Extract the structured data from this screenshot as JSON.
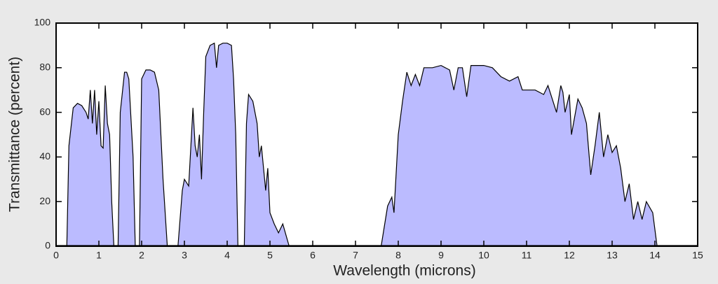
{
  "chart_data": {
    "type": "area",
    "xlabel": "Wavelength (microns)",
    "ylabel": "Transmittance (percent)",
    "color": "#bbbbff",
    "line_color": "#000000",
    "xlim": [
      0,
      15
    ],
    "ylim": [
      0,
      100
    ],
    "xticks": [
      0,
      1,
      2,
      3,
      4,
      5,
      6,
      7,
      8,
      9,
      10,
      11,
      12,
      13,
      14,
      15
    ],
    "yticks": [
      0,
      20,
      40,
      60,
      80,
      100
    ],
    "x": [
      0.25,
      0.3,
      0.4,
      0.5,
      0.6,
      0.7,
      0.75,
      0.8,
      0.85,
      0.9,
      0.95,
      1.0,
      1.05,
      1.1,
      1.15,
      1.2,
      1.25,
      1.3,
      1.35,
      1.45,
      1.5,
      1.6,
      1.65,
      1.7,
      1.8,
      1.85,
      1.95,
      2.0,
      2.1,
      2.2,
      2.3,
      2.4,
      2.5,
      2.6,
      2.85,
      2.95,
      3.0,
      3.1,
      3.2,
      3.25,
      3.3,
      3.35,
      3.4,
      3.45,
      3.5,
      3.6,
      3.7,
      3.75,
      3.8,
      3.9,
      4.0,
      4.1,
      4.15,
      4.2,
      4.25,
      4.4,
      4.45,
      4.5,
      4.6,
      4.7,
      4.75,
      4.8,
      4.9,
      4.95,
      5.0,
      5.1,
      5.2,
      5.3,
      5.45,
      7.6,
      7.75,
      7.85,
      7.9,
      8.0,
      8.1,
      8.2,
      8.3,
      8.4,
      8.5,
      8.6,
      8.8,
      9.0,
      9.2,
      9.3,
      9.4,
      9.5,
      9.6,
      9.7,
      10.0,
      10.2,
      10.4,
      10.6,
      10.8,
      10.9,
      11.2,
      11.4,
      11.5,
      11.7,
      11.8,
      11.85,
      11.9,
      12.0,
      12.05,
      12.2,
      12.3,
      12.4,
      12.5,
      12.6,
      12.7,
      12.8,
      12.9,
      13.0,
      13.1,
      13.2,
      13.3,
      13.4,
      13.5,
      13.6,
      13.7,
      13.8,
      13.95,
      14.05
    ],
    "values": [
      0,
      45,
      62,
      64,
      63,
      60,
      57,
      70,
      55,
      70,
      50,
      65,
      45,
      44,
      72,
      55,
      50,
      20,
      0,
      0,
      60,
      78,
      78,
      75,
      40,
      0,
      0,
      75,
      79,
      79,
      78,
      70,
      30,
      0,
      0,
      25,
      30,
      27,
      62,
      45,
      40,
      50,
      30,
      60,
      85,
      90,
      91,
      80,
      90,
      91,
      91,
      90,
      75,
      50,
      0,
      0,
      55,
      68,
      65,
      55,
      40,
      45,
      25,
      35,
      15,
      10,
      6,
      10,
      0,
      0,
      18,
      22,
      15,
      50,
      65,
      78,
      72,
      77,
      72,
      80,
      80,
      81,
      79,
      70,
      80,
      80,
      67,
      81,
      81,
      80,
      76,
      74,
      76,
      70,
      70,
      68,
      72,
      60,
      72,
      69,
      60,
      68,
      50,
      66,
      62,
      55,
      32,
      45,
      60,
      40,
      50,
      42,
      45,
      35,
      20,
      28,
      12,
      20,
      12,
      20,
      15,
      0
    ]
  }
}
